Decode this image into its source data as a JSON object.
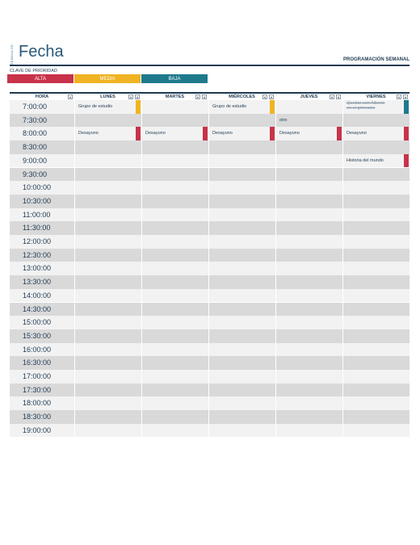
{
  "header": {
    "week_label": "SEMANA DE",
    "title": "Fecha",
    "schedule_title": "PROGRAMACIÓN SEMANAL"
  },
  "priority": {
    "label": "CLAVE DE PRIORIDAD",
    "high": "ALTA",
    "medium": "MEDIA",
    "low": "BAJA"
  },
  "colors": {
    "high": "#c8334a",
    "medium": "#f0b323",
    "low": "#1f7a8c",
    "navy": "#1f3a52"
  },
  "columns": [
    "HORA",
    "LUNES",
    "MARTES",
    "MIÉRCOLES",
    "JUEVES",
    "VIERNES"
  ],
  "times": [
    "7:00:00",
    "7:30:00",
    "8:00:00",
    "8:30:00",
    "9:00:00",
    "9:30:00",
    "10:00:00",
    "10:30:00",
    "11:00:00",
    "11:30:00",
    "12:00:00",
    "12:30:00",
    "13:00:00",
    "13:30:00",
    "14:00:00",
    "14:30:00",
    "15:00:00",
    "15:30:00",
    "16:00:00",
    "16:30:00",
    "17:00:00",
    "17:30:00",
    "18:00:00",
    "18:30:00",
    "19:00:00"
  ],
  "events": [
    {
      "row": 0,
      "day": 1,
      "text": "Grupo de estudio",
      "priority": "medium"
    },
    {
      "row": 0,
      "day": 3,
      "text": "Grupo de estudio",
      "priority": "medium"
    },
    {
      "row": 0,
      "day": 5,
      "text": "Quedar con Alberto en el gimnasio",
      "priority": "low",
      "strike": true
    },
    {
      "row": 1,
      "day": 4,
      "text": "otro",
      "priority": ""
    },
    {
      "row": 2,
      "day": 1,
      "text": "Desayuno",
      "priority": "high"
    },
    {
      "row": 2,
      "day": 2,
      "text": "Desayuno",
      "priority": "high"
    },
    {
      "row": 2,
      "day": 3,
      "text": "Desayuno",
      "priority": "high"
    },
    {
      "row": 2,
      "day": 4,
      "text": "Desayuno",
      "priority": "high"
    },
    {
      "row": 2,
      "day": 5,
      "text": "Desayuno",
      "priority": "high"
    },
    {
      "row": 4,
      "day": 5,
      "text": "Historia del mundo",
      "priority": "high"
    }
  ]
}
